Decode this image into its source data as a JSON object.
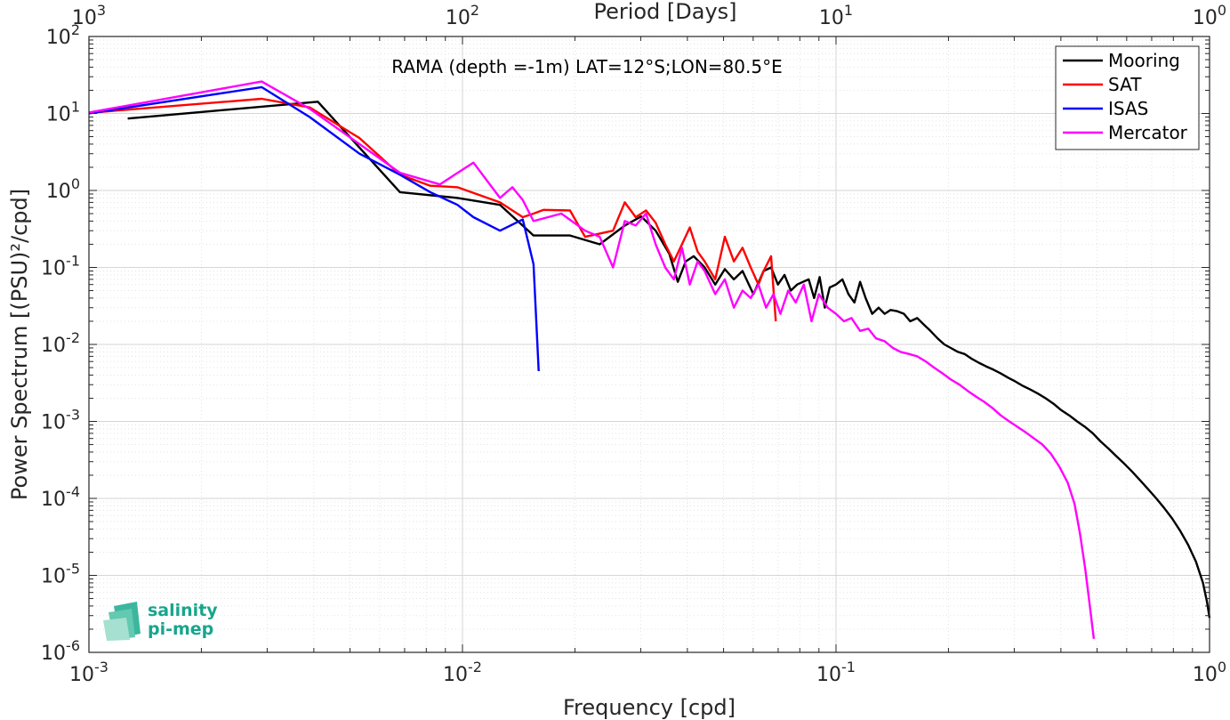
{
  "chart_data": {
    "type": "line",
    "title": "RAMA (depth =-1m) LAT=12°S;LON=80.5°E",
    "xlabel": "Frequency [cpd]",
    "ylabel": "Power Spectrum [(PSU)²/cpd]",
    "top_xlabel": "Period [Days]",
    "x_scale": "log",
    "y_scale": "log",
    "xlim": [
      0.001,
      1
    ],
    "ylim": [
      1e-06,
      100
    ],
    "grid": true,
    "legend_position": "top-right",
    "x_ticks": [
      {
        "base": "10",
        "exp": "-3",
        "value": 0.001
      },
      {
        "base": "10",
        "exp": "-2",
        "value": 0.01
      },
      {
        "base": "10",
        "exp": "-1",
        "value": 0.1
      },
      {
        "base": "10",
        "exp": "0",
        "value": 1
      }
    ],
    "top_ticks": [
      {
        "base": "10",
        "exp": "3",
        "value": 0.001
      },
      {
        "base": "10",
        "exp": "2",
        "value": 0.01
      },
      {
        "base": "10",
        "exp": "1",
        "value": 0.1
      },
      {
        "base": "10",
        "exp": "0",
        "value": 1
      }
    ],
    "y_ticks": [
      {
        "base": "10",
        "exp": "2",
        "value": 100
      },
      {
        "base": "10",
        "exp": "1",
        "value": 10
      },
      {
        "base": "10",
        "exp": "0",
        "value": 1
      },
      {
        "base": "10",
        "exp": "-1",
        "value": 0.1
      },
      {
        "base": "10",
        "exp": "-2",
        "value": 0.01
      },
      {
        "base": "10",
        "exp": "-3",
        "value": 0.001
      },
      {
        "base": "10",
        "exp": "-4",
        "value": 0.0001
      },
      {
        "base": "10",
        "exp": "-5",
        "value": 1e-05
      },
      {
        "base": "10",
        "exp": "-6",
        "value": 1e-06
      }
    ],
    "series": [
      {
        "name": "Mooring",
        "color": "#000000",
        "points": [
          [
            0.00127,
            8.6
          ],
          [
            0.0041,
            14.2
          ],
          [
            0.0068,
            0.95
          ],
          [
            0.0097,
            0.8
          ],
          [
            0.0126,
            0.65
          ],
          [
            0.0155,
            0.26
          ],
          [
            0.0194,
            0.26
          ],
          [
            0.0233,
            0.2
          ],
          [
            0.0272,
            0.35
          ],
          [
            0.0301,
            0.46
          ],
          [
            0.0329,
            0.3
          ],
          [
            0.0358,
            0.15
          ],
          [
            0.0377,
            0.065
          ],
          [
            0.0396,
            0.12
          ],
          [
            0.0416,
            0.14
          ],
          [
            0.0445,
            0.1
          ],
          [
            0.0475,
            0.06
          ],
          [
            0.0504,
            0.095
          ],
          [
            0.0533,
            0.07
          ],
          [
            0.0562,
            0.09
          ],
          [
            0.0601,
            0.045
          ],
          [
            0.064,
            0.09
          ],
          [
            0.067,
            0.1
          ],
          [
            0.0699,
            0.06
          ],
          [
            0.0728,
            0.08
          ],
          [
            0.0757,
            0.05
          ],
          [
            0.0787,
            0.06
          ],
          [
            0.0816,
            0.065
          ],
          [
            0.0845,
            0.07
          ],
          [
            0.0874,
            0.04
          ],
          [
            0.0904,
            0.075
          ],
          [
            0.0933,
            0.03
          ],
          [
            0.0962,
            0.055
          ],
          [
            0.1,
            0.06
          ],
          [
            0.104,
            0.07
          ],
          [
            0.108,
            0.045
          ],
          [
            0.112,
            0.035
          ],
          [
            0.116,
            0.065
          ],
          [
            0.12,
            0.04
          ],
          [
            0.125,
            0.025
          ],
          [
            0.13,
            0.03
          ],
          [
            0.135,
            0.025
          ],
          [
            0.14,
            0.028
          ],
          [
            0.146,
            0.027
          ],
          [
            0.152,
            0.025
          ],
          [
            0.158,
            0.02
          ],
          [
            0.165,
            0.022
          ],
          [
            0.172,
            0.018
          ],
          [
            0.179,
            0.015
          ],
          [
            0.187,
            0.012
          ],
          [
            0.195,
            0.01
          ],
          [
            0.203,
            0.009
          ],
          [
            0.212,
            0.008
          ],
          [
            0.221,
            0.0075
          ],
          [
            0.231,
            0.0065
          ],
          [
            0.241,
            0.0058
          ],
          [
            0.252,
            0.0052
          ],
          [
            0.264,
            0.0047
          ],
          [
            0.276,
            0.0042
          ],
          [
            0.289,
            0.0037
          ],
          [
            0.302,
            0.0033
          ],
          [
            0.316,
            0.0029
          ],
          [
            0.331,
            0.0026
          ],
          [
            0.347,
            0.0023
          ],
          [
            0.364,
            0.002
          ],
          [
            0.382,
            0.0017
          ],
          [
            0.401,
            0.0014
          ],
          [
            0.421,
            0.0012
          ],
          [
            0.442,
            0.001
          ],
          [
            0.464,
            0.00085
          ],
          [
            0.487,
            0.0007
          ],
          [
            0.511,
            0.00055
          ],
          [
            0.537,
            0.00044
          ],
          [
            0.564,
            0.00035
          ],
          [
            0.592,
            0.00028
          ],
          [
            0.622,
            0.00022
          ],
          [
            0.653,
            0.00017
          ],
          [
            0.686,
            0.00013
          ],
          [
            0.72,
            0.0001
          ],
          [
            0.756,
            7.5e-05
          ],
          [
            0.794,
            5.5e-05
          ],
          [
            0.834,
            3.8e-05
          ],
          [
            0.876,
            2.5e-05
          ],
          [
            0.92,
            1.5e-05
          ],
          [
            0.96,
            8e-06
          ],
          [
            0.985,
            4.5e-06
          ],
          [
            1.0,
            2.8e-06
          ]
        ]
      },
      {
        "name": "SAT",
        "color": "#ff0000",
        "points": [
          [
            0.001,
            10.2
          ],
          [
            0.0029,
            15.5
          ],
          [
            0.0039,
            12.0
          ],
          [
            0.0053,
            4.8
          ],
          [
            0.0068,
            1.6
          ],
          [
            0.0082,
            1.15
          ],
          [
            0.0097,
            1.1
          ],
          [
            0.0126,
            0.7
          ],
          [
            0.0145,
            0.45
          ],
          [
            0.0155,
            0.5
          ],
          [
            0.0165,
            0.56
          ],
          [
            0.0194,
            0.55
          ],
          [
            0.0213,
            0.25
          ],
          [
            0.0253,
            0.3
          ],
          [
            0.0272,
            0.7
          ],
          [
            0.0291,
            0.45
          ],
          [
            0.031,
            0.55
          ],
          [
            0.0329,
            0.38
          ],
          [
            0.0349,
            0.2
          ],
          [
            0.0368,
            0.12
          ],
          [
            0.0387,
            0.2
          ],
          [
            0.0406,
            0.33
          ],
          [
            0.0426,
            0.16
          ],
          [
            0.0445,
            0.12
          ],
          [
            0.0475,
            0.07
          ],
          [
            0.0504,
            0.25
          ],
          [
            0.0533,
            0.12
          ],
          [
            0.0562,
            0.18
          ],
          [
            0.0591,
            0.1
          ],
          [
            0.062,
            0.06
          ],
          [
            0.064,
            0.09
          ],
          [
            0.067,
            0.14
          ],
          [
            0.069,
            0.02
          ]
        ]
      },
      {
        "name": "ISAS",
        "color": "#0000ff",
        "points": [
          [
            0.001,
            10.0
          ],
          [
            0.0029,
            22.0
          ],
          [
            0.0039,
            9.0
          ],
          [
            0.0053,
            3.0
          ],
          [
            0.0068,
            1.6
          ],
          [
            0.0082,
            0.95
          ],
          [
            0.0097,
            0.65
          ],
          [
            0.0107,
            0.45
          ],
          [
            0.0126,
            0.3
          ],
          [
            0.0145,
            0.42
          ],
          [
            0.0155,
            0.11
          ],
          [
            0.016,
            0.0045
          ]
        ]
      },
      {
        "name": "Mercator",
        "color": "#ff00ff",
        "points": [
          [
            0.001,
            10.3
          ],
          [
            0.0029,
            26.0
          ],
          [
            0.0039,
            11.5
          ],
          [
            0.0053,
            4.0
          ],
          [
            0.0068,
            1.7
          ],
          [
            0.0087,
            1.2
          ],
          [
            0.0107,
            2.3
          ],
          [
            0.0126,
            0.8
          ],
          [
            0.0136,
            1.1
          ],
          [
            0.0145,
            0.75
          ],
          [
            0.0155,
            0.4
          ],
          [
            0.0184,
            0.5
          ],
          [
            0.0213,
            0.3
          ],
          [
            0.0233,
            0.25
          ],
          [
            0.0253,
            0.1
          ],
          [
            0.0272,
            0.4
          ],
          [
            0.0291,
            0.35
          ],
          [
            0.031,
            0.5
          ],
          [
            0.0329,
            0.2
          ],
          [
            0.0349,
            0.1
          ],
          [
            0.0368,
            0.07
          ],
          [
            0.0387,
            0.18
          ],
          [
            0.0406,
            0.06
          ],
          [
            0.0426,
            0.12
          ],
          [
            0.0445,
            0.09
          ],
          [
            0.0475,
            0.045
          ],
          [
            0.0504,
            0.07
          ],
          [
            0.0533,
            0.03
          ],
          [
            0.0562,
            0.05
          ],
          [
            0.0591,
            0.04
          ],
          [
            0.062,
            0.06
          ],
          [
            0.065,
            0.03
          ],
          [
            0.068,
            0.045
          ],
          [
            0.071,
            0.025
          ],
          [
            0.0745,
            0.05
          ],
          [
            0.078,
            0.035
          ],
          [
            0.082,
            0.06
          ],
          [
            0.086,
            0.02
          ],
          [
            0.09,
            0.045
          ],
          [
            0.095,
            0.03
          ],
          [
            0.1,
            0.025
          ],
          [
            0.105,
            0.02
          ],
          [
            0.11,
            0.022
          ],
          [
            0.116,
            0.015
          ],
          [
            0.122,
            0.016
          ],
          [
            0.128,
            0.012
          ],
          [
            0.135,
            0.011
          ],
          [
            0.142,
            0.009
          ],
          [
            0.149,
            0.008
          ],
          [
            0.157,
            0.0075
          ],
          [
            0.165,
            0.007
          ],
          [
            0.174,
            0.006
          ],
          [
            0.183,
            0.005
          ],
          [
            0.193,
            0.0042
          ],
          [
            0.203,
            0.0035
          ],
          [
            0.214,
            0.003
          ],
          [
            0.225,
            0.0025
          ],
          [
            0.237,
            0.0021
          ],
          [
            0.249,
            0.0018
          ],
          [
            0.262,
            0.0015
          ],
          [
            0.276,
            0.0012
          ],
          [
            0.291,
            0.001
          ],
          [
            0.306,
            0.00085
          ],
          [
            0.322,
            0.00072
          ],
          [
            0.339,
            0.0006
          ],
          [
            0.357,
            0.0005
          ],
          [
            0.376,
            0.00038
          ],
          [
            0.396,
            0.00026
          ],
          [
            0.417,
            0.00016
          ],
          [
            0.435,
            8.5e-05
          ],
          [
            0.45,
            3.5e-05
          ],
          [
            0.465,
            1.2e-05
          ],
          [
            0.478,
            4e-06
          ],
          [
            0.49,
            1.5e-06
          ]
        ]
      }
    ]
  },
  "logo": {
    "line1": "salinity",
    "line2": "pi-mep",
    "color": "#18a58c"
  }
}
